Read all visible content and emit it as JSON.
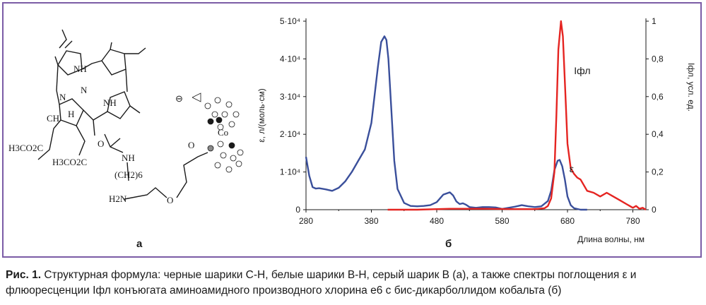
{
  "figure": {
    "panel_a_label": "а",
    "panel_b_label": "б"
  },
  "molecule": {
    "labels": {
      "nh_top": "NH",
      "n_left": "N",
      "nh_right": "NH",
      "n_bottom": "N",
      "h_center": "H",
      "ch3": "CH",
      "ester1": "H3CO2C",
      "ester2": "H3CO2C",
      "carbonyl_o": "O",
      "amide_nh": "NH",
      "chain_ch2": "(CH2)6",
      "ammonium": "H2N",
      "ether_o1": "O",
      "ether_o2": "O",
      "cobalt": "Co",
      "anion_sign": "⊖"
    }
  },
  "chart_data": {
    "type": "line",
    "xlabel": "Длина волны, нм",
    "ylabel_left": "ε, л/(моль·см)",
    "ylabel_right": "Iфл, усл. ед.",
    "xlim": [
      280,
      800
    ],
    "ylim_left": [
      0,
      50000
    ],
    "ylim_right": [
      0,
      1
    ],
    "x_ticks": [
      "280",
      "380",
      "480",
      "580",
      "680",
      "780"
    ],
    "y_left_ticks": [
      "0",
      "1·10⁴",
      "2·10⁴",
      "3·10⁴",
      "4·10⁴",
      "5·10⁴"
    ],
    "y_right_ticks": [
      "0",
      "0,2",
      "0,4",
      "0,6",
      "0,8",
      "1"
    ],
    "series": [
      {
        "name": "ε",
        "axis": "left",
        "color": "#3a4f9b",
        "x": [
          280,
          285,
          290,
          295,
          300,
          310,
          320,
          330,
          340,
          350,
          360,
          370,
          380,
          390,
          395,
          400,
          403,
          406,
          410,
          415,
          420,
          430,
          440,
          450,
          460,
          470,
          480,
          490,
          500,
          505,
          510,
          515,
          520,
          525,
          530,
          540,
          550,
          560,
          570,
          580,
          590,
          600,
          610,
          620,
          630,
          640,
          650,
          655,
          660,
          665,
          668,
          672,
          676,
          680,
          685,
          690,
          700,
          710
        ],
        "values": [
          14000,
          9000,
          6000,
          5600,
          5700,
          5400,
          5000,
          5800,
          7500,
          10000,
          13000,
          16000,
          23000,
          38000,
          44500,
          46000,
          45000,
          40000,
          28000,
          13000,
          5500,
          1800,
          1000,
          900,
          1000,
          1200,
          2000,
          4000,
          4600,
          3800,
          2200,
          1500,
          1700,
          1300,
          700,
          500,
          700,
          700,
          600,
          200,
          500,
          800,
          1200,
          900,
          700,
          900,
          2300,
          5000,
          10500,
          13000,
          13200,
          11500,
          8000,
          3500,
          1200,
          400,
          0,
          0
        ]
      },
      {
        "name": "Iфл",
        "axis": "right",
        "color": "#e52421",
        "x": [
          405,
          450,
          500,
          550,
          600,
          630,
          645,
          650,
          655,
          660,
          663,
          666,
          670,
          673,
          677,
          680,
          685,
          690,
          695,
          700,
          710,
          720,
          730,
          740,
          750,
          760,
          770,
          780,
          785,
          790,
          795,
          800
        ],
        "values": [
          0,
          0,
          0.005,
          0.005,
          0.003,
          0.003,
          0.008,
          0.02,
          0.06,
          0.2,
          0.5,
          0.85,
          1.0,
          0.92,
          0.6,
          0.35,
          0.22,
          0.19,
          0.17,
          0.16,
          0.1,
          0.09,
          0.07,
          0.09,
          0.07,
          0.05,
          0.03,
          0.01,
          0.02,
          0.005,
          0.01,
          0
        ]
      }
    ],
    "annotations": [
      {
        "text": "Iфл",
        "series": "Iфл"
      },
      {
        "text": "ε",
        "series": "ε"
      }
    ]
  },
  "caption": {
    "label": "Рис. 1.",
    "text": " Структурная формула: черные шарики C-H, белые шарики B-H, серый шарик B (а), а также спектры поглощения ε и флюоресценции Iфл конъюгата аминоамидного производного хлорина e6 с бис-дикарболлидом кобальта (б)"
  }
}
